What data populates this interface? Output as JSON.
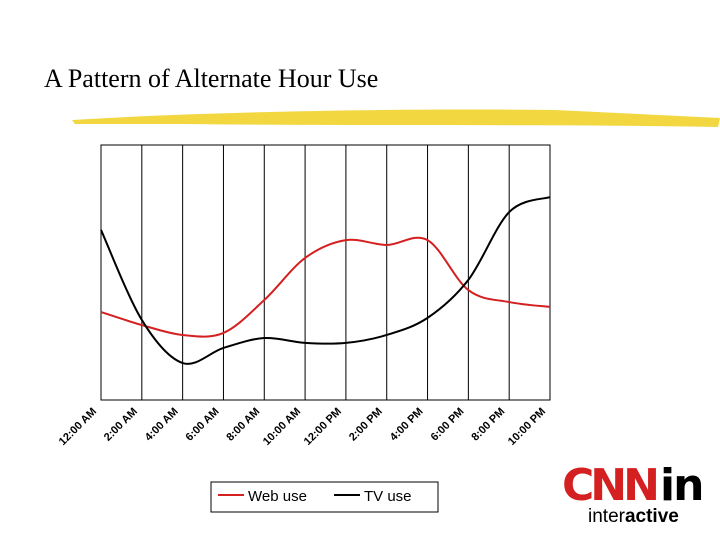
{
  "chart_data": {
    "type": "line",
    "title": "A Pattern of Alternate Hour Use",
    "categories": [
      "12:00 AM",
      "2:00 AM",
      "4:00 AM",
      "6:00 AM",
      "8:00 AM",
      "10:00 AM",
      "12:00 PM",
      "2:00 PM",
      "4:00 PM",
      "6:00 PM",
      "8:00 PM",
      "10:00 PM"
    ],
    "series": [
      {
        "name": "Web use",
        "color": "#d42020",
        "values": [
          34.5,
          29.4,
          25.5,
          26.3,
          39.2,
          55.7,
          62.7,
          60.8,
          62.7,
          43.1,
          38.4,
          36.5
        ]
      },
      {
        "name": "TV use",
        "color": "#000000",
        "values": [
          66.7,
          31.4,
          14.5,
          20.4,
          24.3,
          22.4,
          22.4,
          25.5,
          32.2,
          47.1,
          73.7,
          79.6
        ]
      }
    ],
    "ylim": [
      0,
      100
    ],
    "grid": true,
    "legend": "bottom"
  },
  "logo": {
    "brand": "CNN",
    "suffix": "in",
    "tagline_start": "inter",
    "tagline_end": "active"
  }
}
